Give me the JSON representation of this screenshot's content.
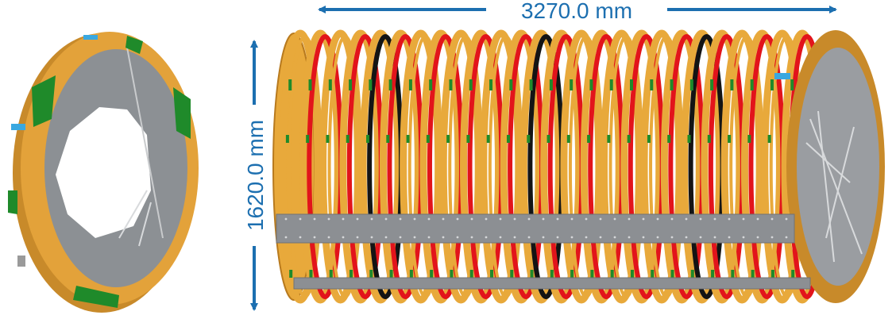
{
  "dimensions": {
    "length_label": "3270.0 mm",
    "diameter_label": "1620.0 mm"
  },
  "colors": {
    "ring_gold": "#e8a93b",
    "ring_dark": "#b87a1e",
    "ring_red": "#e2141b",
    "ring_black": "#141414",
    "board_green": "#1f8a2a",
    "plate_gray": "#8c8f93",
    "bracket_blue": "#3aa8e0",
    "dimension_blue": "#1c6fb0"
  },
  "assembly": {
    "ring_count": 26,
    "ring_pattern": [
      "gold",
      "red",
      "gold",
      "red",
      "black",
      "red",
      "gold",
      "red"
    ]
  }
}
